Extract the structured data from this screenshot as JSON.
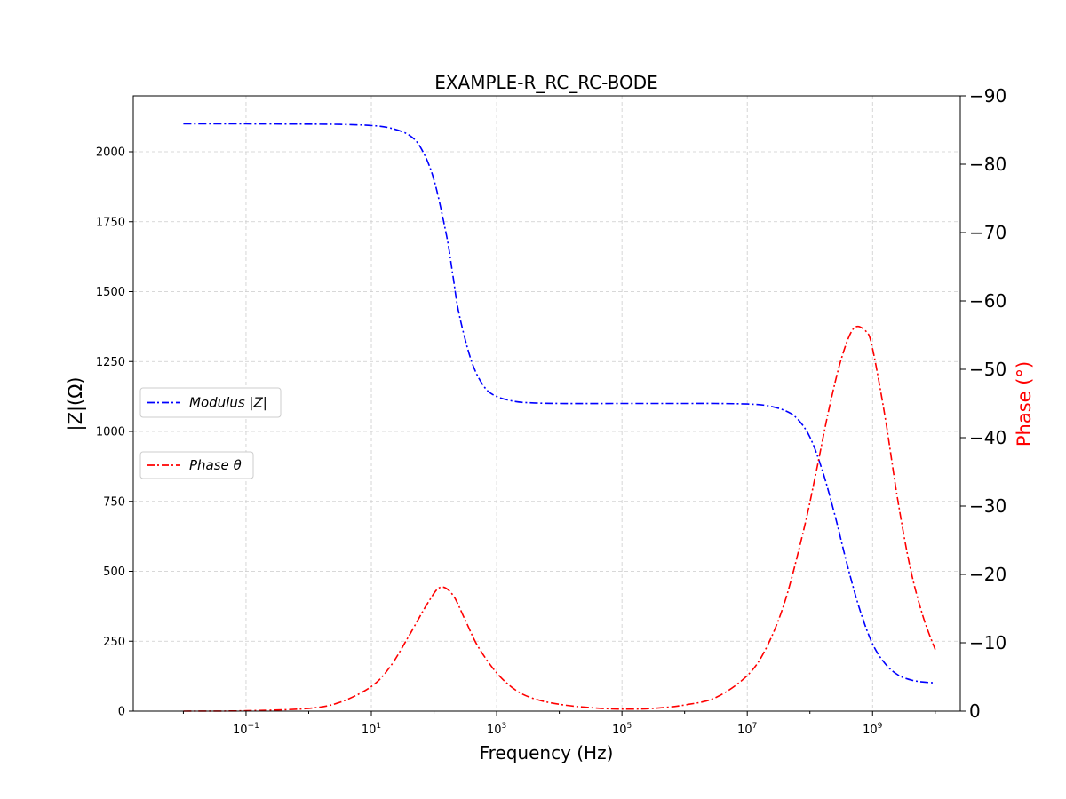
{
  "chart_data": {
    "type": "line",
    "title": "EXAMPLE-R_RC_RC-BODE",
    "xlabel": "Frequency (Hz)",
    "ylabel_left": "|Z|(Ω)",
    "ylabel_right": "Phase (°)",
    "xscale": "log",
    "xlim_log10": [
      -2.8,
      10.4
    ],
    "ylim_left": [
      0,
      2200
    ],
    "ylim_right_neg_phase": [
      0,
      90
    ],
    "grid": true,
    "x_tick_labels": [
      {
        "base": "10",
        "exp": "−1",
        "log10": -1
      },
      {
        "base": "10",
        "exp": "1",
        "log10": 1
      },
      {
        "base": "10",
        "exp": "3",
        "log10": 3
      },
      {
        "base": "10",
        "exp": "5",
        "log10": 5
      },
      {
        "base": "10",
        "exp": "7",
        "log10": 7
      },
      {
        "base": "10",
        "exp": "9",
        "log10": 9
      }
    ],
    "y_left_ticks": [
      0,
      250,
      500,
      750,
      1000,
      1250,
      1500,
      1750,
      2000
    ],
    "y_right_ticks": [
      {
        "label": "0",
        "value": 0
      },
      {
        "label": "−10",
        "value": 10
      },
      {
        "label": "−20",
        "value": 20
      },
      {
        "label": "−30",
        "value": 30
      },
      {
        "label": "−40",
        "value": 40
      },
      {
        "label": "−50",
        "value": 50
      },
      {
        "label": "−60",
        "value": 60
      },
      {
        "label": "−70",
        "value": 70
      },
      {
        "label": "−80",
        "value": 80
      },
      {
        "label": "−90",
        "value": 90
      }
    ],
    "legend": [
      {
        "label_pre": "Modulus ",
        "label_math": "|Z|",
        "color": "#0000ff",
        "series": "modulus"
      },
      {
        "label_pre": "Phase ",
        "label_math": "θ",
        "color": "#ff0000",
        "series": "phase"
      }
    ],
    "legend_placement": "center-left",
    "series": [
      {
        "name": "Modulus |Z|",
        "axis": "left",
        "color": "#0000ff",
        "linestyle": "dashdot",
        "x_log10": [
          -2,
          -1,
          0,
          0.5,
          1,
          1.3,
          1.6,
          1.8,
          2.0,
          2.2,
          2.3,
          2.4,
          2.6,
          2.8,
          3.0,
          3.3,
          3.6,
          4,
          5,
          6,
          6.5,
          7,
          7.3,
          7.6,
          7.8,
          8.0,
          8.2,
          8.4,
          8.6,
          8.8,
          9.0,
          9.2,
          9.4,
          9.6,
          9.8,
          10
        ],
        "y": [
          2100,
          2100,
          2099,
          2098,
          2094,
          2085,
          2060,
          2010,
          1900,
          1700,
          1560,
          1420,
          1250,
          1160,
          1125,
          1107,
          1102,
          1100,
          1100,
          1100,
          1100,
          1098,
          1093,
          1075,
          1045,
          980,
          860,
          700,
          520,
          360,
          240,
          170,
          130,
          112,
          104,
          101
        ]
      },
      {
        "name": "Phase θ",
        "axis": "right",
        "color": "#ff0000",
        "linestyle": "dashdot",
        "x_log10": [
          -2,
          -1,
          0,
          0.5,
          1,
          1.3,
          1.6,
          1.9,
          2.1,
          2.3,
          2.5,
          2.7,
          3.0,
          3.3,
          3.6,
          4,
          4.5,
          5,
          5.5,
          6,
          6.5,
          7.0,
          7.3,
          7.6,
          7.9,
          8.1,
          8.3,
          8.5,
          8.7,
          8.9,
          9.0,
          9.2,
          9.4,
          9.6,
          9.8,
          10
        ],
        "y": [
          0,
          0.05,
          0.4,
          1.3,
          3.6,
          6.5,
          11,
          15.8,
          18.1,
          17,
          13.3,
          9.5,
          5.6,
          3.1,
          1.8,
          1.0,
          0.5,
          0.3,
          0.4,
          0.9,
          2.0,
          5.2,
          9.2,
          16,
          26.5,
          35,
          44,
          51.5,
          56,
          55.5,
          53,
          43,
          31,
          21,
          14,
          9
        ]
      }
    ]
  }
}
